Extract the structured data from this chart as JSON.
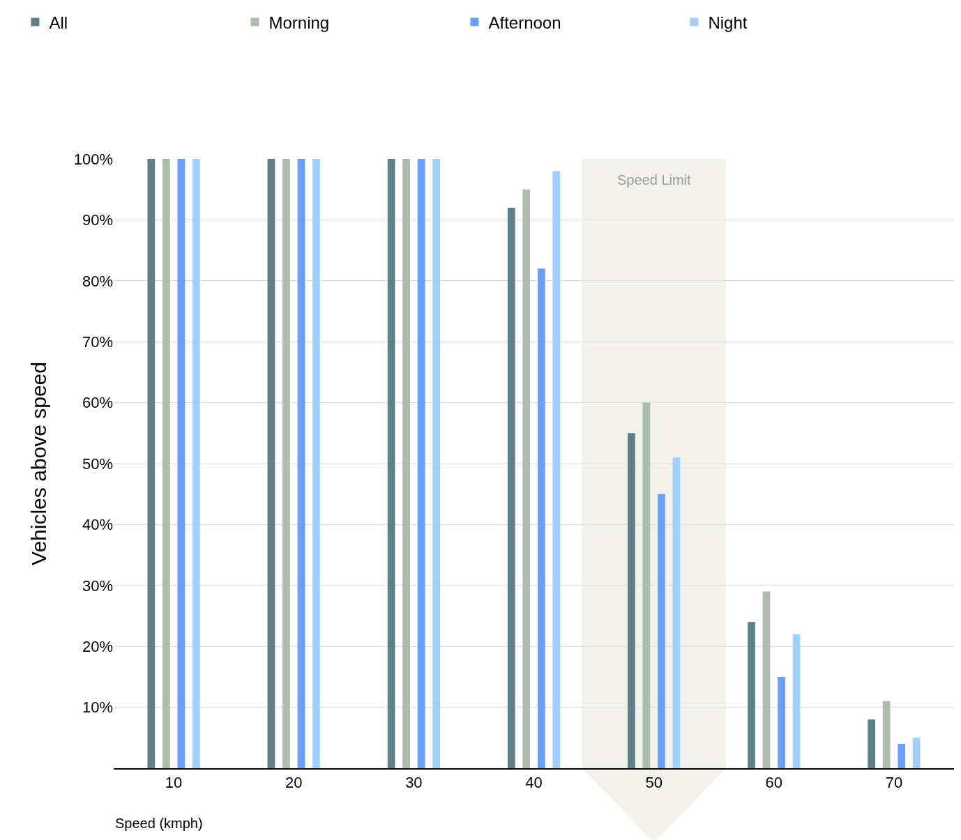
{
  "chart_data": {
    "type": "bar",
    "xlabel": "Speed (kmph)",
    "ylabel": "Vehicles above speed",
    "x": [
      10,
      20,
      30,
      40,
      50,
      60,
      70
    ],
    "xlim": [
      5,
      75
    ],
    "xticks": [
      10,
      20,
      30,
      40,
      50,
      60,
      70
    ],
    "ylim": [
      0,
      100
    ],
    "yticks": [
      {
        "value": 10,
        "label": "10%"
      },
      {
        "value": 20,
        "label": "20%"
      },
      {
        "value": 30,
        "label": "30%"
      },
      {
        "value": 40,
        "label": "40%"
      },
      {
        "value": 50,
        "label": "50%"
      },
      {
        "value": 60,
        "label": "60%"
      },
      {
        "value": 70,
        "label": "70%"
      },
      {
        "value": 80,
        "label": "80%"
      },
      {
        "value": 90,
        "label": "90%"
      },
      {
        "value": 100,
        "label": "100%"
      }
    ],
    "series": [
      {
        "name": "All",
        "color": "#5f8088",
        "values": [
          100,
          100,
          100,
          92,
          55,
          24,
          8
        ]
      },
      {
        "name": "Morning",
        "color": "#adbcad",
        "values": [
          100,
          100,
          100,
          95,
          60,
          29,
          11
        ]
      },
      {
        "name": "Afternoon",
        "color": "#68a0fc",
        "values": [
          100,
          100,
          100,
          82,
          45,
          15,
          4
        ]
      },
      {
        "name": "Night",
        "color": "#a2d0fc",
        "values": [
          100,
          100,
          100,
          98,
          51,
          22,
          5
        ]
      }
    ],
    "bands": [
      {
        "axis": "x",
        "from": 44,
        "to": 56,
        "label": "Speed Limit",
        "color": "#f2f1eb"
      }
    ],
    "grid": "y",
    "legend": "top left"
  }
}
